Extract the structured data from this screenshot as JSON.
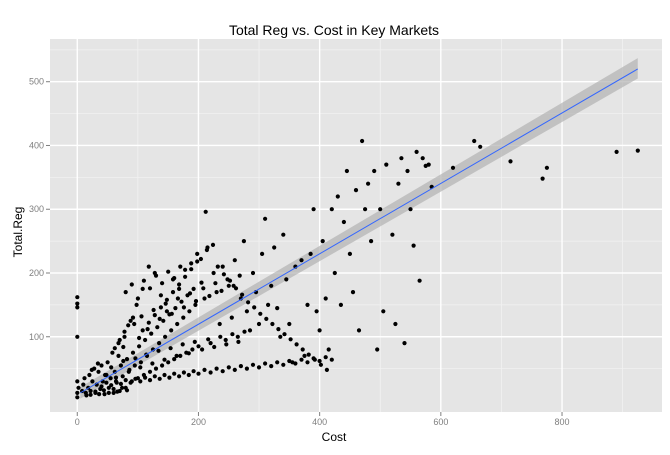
{
  "chart_data": {
    "type": "scatter",
    "title": "Total Reg vs. Cost in Key Markets",
    "xlabel": "Cost",
    "ylabel": "Total.Reg",
    "xlim": [
      -45,
      965
    ],
    "ylim": [
      -18,
      567
    ],
    "x_ticks": [
      0,
      200,
      400,
      600,
      800
    ],
    "y_ticks": [
      100,
      200,
      300,
      400,
      500
    ],
    "grid": true,
    "colors": {
      "panel": "#e5e5e5",
      "grid": "#ffffff",
      "point": "#000000",
      "fit_line": "#3366ff",
      "confidence_band": "#b2b2b2"
    },
    "fit_line": {
      "x": [
        5,
        925
      ],
      "y": [
        12,
        520
      ]
    },
    "confidence_band": {
      "x": [
        5,
        925
      ],
      "lower": [
        3,
        505
      ],
      "upper": [
        21,
        537
      ]
    },
    "points": [
      [
        0,
        162
      ],
      [
        0,
        152
      ],
      [
        0,
        146
      ],
      [
        0,
        100
      ],
      [
        0,
        30
      ],
      [
        0,
        12
      ],
      [
        0,
        5
      ],
      [
        2,
        20
      ],
      [
        8,
        15
      ],
      [
        10,
        25
      ],
      [
        12,
        35
      ],
      [
        15,
        8
      ],
      [
        18,
        20
      ],
      [
        20,
        40
      ],
      [
        22,
        15
      ],
      [
        25,
        30
      ],
      [
        28,
        50
      ],
      [
        30,
        12
      ],
      [
        32,
        25
      ],
      [
        35,
        45
      ],
      [
        38,
        18
      ],
      [
        40,
        55
      ],
      [
        42,
        30
      ],
      [
        45,
        10
      ],
      [
        48,
        40
      ],
      [
        50,
        60
      ],
      [
        52,
        20
      ],
      [
        55,
        35
      ],
      [
        58,
        75
      ],
      [
        60,
        12
      ],
      [
        62,
        45
      ],
      [
        65,
        28
      ],
      [
        68,
        90
      ],
      [
        70,
        15
      ],
      [
        72,
        55
      ],
      [
        75,
        38
      ],
      [
        78,
        100
      ],
      [
        80,
        20
      ],
      [
        82,
        65
      ],
      [
        85,
        45
      ],
      [
        88,
        125
      ],
      [
        90,
        30
      ],
      [
        92,
        75
      ],
      [
        95,
        55
      ],
      [
        98,
        150
      ],
      [
        100,
        35
      ],
      [
        102,
        85
      ],
      [
        105,
        60
      ],
      [
        108,
        175
      ],
      [
        110,
        40
      ],
      [
        112,
        95
      ],
      [
        115,
        70
      ],
      [
        118,
        210
      ],
      [
        120,
        45
      ],
      [
        122,
        105
      ],
      [
        125,
        80
      ],
      [
        128,
        200
      ],
      [
        130,
        50
      ],
      [
        132,
        115
      ],
      [
        135,
        90
      ],
      [
        138,
        165
      ],
      [
        140,
        55
      ],
      [
        142,
        125
      ],
      [
        145,
        100
      ],
      [
        148,
        140
      ],
      [
        150,
        60
      ],
      [
        152,
        135
      ],
      [
        155,
        110
      ],
      [
        158,
        190
      ],
      [
        160,
        65
      ],
      [
        162,
        145
      ],
      [
        165,
        120
      ],
      [
        168,
        175
      ],
      [
        170,
        70
      ],
      [
        172,
        155
      ],
      [
        175,
        130
      ],
      [
        178,
        205
      ],
      [
        180,
        75
      ],
      [
        182,
        165
      ],
      [
        185,
        140
      ],
      [
        188,
        215
      ],
      [
        190,
        80
      ],
      [
        192,
        175
      ],
      [
        195,
        150
      ],
      [
        198,
        230
      ],
      [
        200,
        85
      ],
      [
        205,
        185
      ],
      [
        210,
        160
      ],
      [
        212,
        296
      ],
      [
        215,
        240
      ],
      [
        220,
        90
      ],
      [
        225,
        200
      ],
      [
        230,
        170
      ],
      [
        235,
        120
      ],
      [
        240,
        210
      ],
      [
        245,
        95
      ],
      [
        250,
        180
      ],
      [
        255,
        130
      ],
      [
        260,
        220
      ],
      [
        265,
        100
      ],
      [
        270,
        160
      ],
      [
        275,
        250
      ],
      [
        280,
        140
      ],
      [
        285,
        110
      ],
      [
        290,
        200
      ],
      [
        295,
        170
      ],
      [
        300,
        120
      ],
      [
        305,
        230
      ],
      [
        310,
        285
      ],
      [
        315,
        150
      ],
      [
        320,
        180
      ],
      [
        325,
        240
      ],
      [
        330,
        145
      ],
      [
        335,
        100
      ],
      [
        340,
        260
      ],
      [
        345,
        190
      ],
      [
        350,
        120
      ],
      [
        355,
        60
      ],
      [
        360,
        210
      ],
      [
        370,
        220
      ],
      [
        375,
        70
      ],
      [
        380,
        150
      ],
      [
        385,
        230
      ],
      [
        390,
        300
      ],
      [
        395,
        140
      ],
      [
        400,
        110
      ],
      [
        405,
        250
      ],
      [
        410,
        160
      ],
      [
        415,
        80
      ],
      [
        420,
        300
      ],
      [
        425,
        200
      ],
      [
        430,
        320
      ],
      [
        435,
        150
      ],
      [
        440,
        280
      ],
      [
        445,
        360
      ],
      [
        450,
        230
      ],
      [
        455,
        170
      ],
      [
        460,
        330
      ],
      [
        465,
        110
      ],
      [
        470,
        407
      ],
      [
        475,
        300
      ],
      [
        480,
        340
      ],
      [
        485,
        250
      ],
      [
        490,
        360
      ],
      [
        495,
        80
      ],
      [
        500,
        300
      ],
      [
        505,
        140
      ],
      [
        510,
        370
      ],
      [
        520,
        260
      ],
      [
        525,
        120
      ],
      [
        530,
        340
      ],
      [
        535,
        380
      ],
      [
        540,
        90
      ],
      [
        545,
        360
      ],
      [
        550,
        300
      ],
      [
        555,
        243
      ],
      [
        560,
        390
      ],
      [
        565,
        188
      ],
      [
        570,
        380
      ],
      [
        575,
        368
      ],
      [
        580,
        370
      ],
      [
        585,
        335
      ],
      [
        620,
        365
      ],
      [
        655,
        407
      ],
      [
        665,
        398
      ],
      [
        715,
        375
      ],
      [
        768,
        348
      ],
      [
        775,
        365
      ],
      [
        890,
        390
      ],
      [
        925,
        392
      ],
      [
        14,
        12
      ],
      [
        22,
        9
      ],
      [
        30,
        14
      ],
      [
        36,
        10
      ],
      [
        44,
        16
      ],
      [
        52,
        12
      ],
      [
        60,
        18
      ],
      [
        66,
        14
      ],
      [
        74,
        20
      ],
      [
        82,
        16
      ],
      [
        24,
        48
      ],
      [
        34,
        58
      ],
      [
        46,
        40
      ],
      [
        56,
        52
      ],
      [
        64,
        36
      ],
      [
        76,
        62
      ],
      [
        86,
        48
      ],
      [
        96,
        66
      ],
      [
        104,
        52
      ],
      [
        114,
        72
      ],
      [
        124,
        58
      ],
      [
        134,
        78
      ],
      [
        144,
        64
      ],
      [
        154,
        82
      ],
      [
        164,
        70
      ],
      [
        174,
        88
      ],
      [
        184,
        74
      ],
      [
        194,
        92
      ],
      [
        206,
        80
      ],
      [
        216,
        96
      ],
      [
        226,
        84
      ],
      [
        236,
        100
      ],
      [
        246,
        88
      ],
      [
        256,
        104
      ],
      [
        266,
        92
      ],
      [
        276,
        108
      ],
      [
        94,
        120
      ],
      [
        106,
        132
      ],
      [
        116,
        112
      ],
      [
        126,
        142
      ],
      [
        136,
        128
      ],
      [
        146,
        152
      ],
      [
        156,
        136
      ],
      [
        166,
        160
      ],
      [
        176,
        146
      ],
      [
        186,
        168
      ],
      [
        196,
        156
      ],
      [
        208,
        176
      ],
      [
        218,
        164
      ],
      [
        228,
        184
      ],
      [
        238,
        172
      ],
      [
        248,
        190
      ],
      [
        258,
        180
      ],
      [
        268,
        196
      ],
      [
        80,
        170
      ],
      [
        90,
        182
      ],
      [
        100,
        160
      ],
      [
        110,
        188
      ],
      [
        120,
        176
      ],
      [
        130,
        196
      ],
      [
        140,
        184
      ],
      [
        150,
        202
      ],
      [
        160,
        192
      ],
      [
        170,
        210
      ],
      [
        62,
        82
      ],
      [
        70,
        95
      ],
      [
        78,
        108
      ],
      [
        84,
        118
      ],
      [
        92,
        130
      ],
      [
        68,
        70
      ],
      [
        76,
        84
      ],
      [
        102,
        98
      ],
      [
        108,
        110
      ],
      [
        118,
        122
      ],
      [
        128,
        134
      ],
      [
        138,
        146
      ],
      [
        148,
        158
      ],
      [
        158,
        170
      ],
      [
        168,
        182
      ],
      [
        178,
        194
      ],
      [
        188,
        206
      ],
      [
        198,
        218
      ],
      [
        204,
        222
      ],
      [
        214,
        236
      ],
      [
        224,
        244
      ],
      [
        232,
        210
      ],
      [
        242,
        198
      ],
      [
        252,
        188
      ],
      [
        262,
        176
      ],
      [
        272,
        166
      ],
      [
        282,
        154
      ],
      [
        292,
        146
      ],
      [
        302,
        136
      ],
      [
        312,
        128
      ],
      [
        322,
        120
      ],
      [
        332,
        112
      ],
      [
        342,
        104
      ],
      [
        352,
        96
      ],
      [
        362,
        88
      ],
      [
        372,
        80
      ],
      [
        382,
        72
      ],
      [
        392,
        64
      ],
      [
        402,
        56
      ],
      [
        412,
        48
      ],
      [
        40,
        22
      ],
      [
        48,
        28
      ],
      [
        56,
        24
      ],
      [
        64,
        30
      ],
      [
        72,
        26
      ],
      [
        80,
        32
      ],
      [
        88,
        28
      ],
      [
        96,
        34
      ],
      [
        104,
        30
      ],
      [
        112,
        36
      ],
      [
        120,
        32
      ],
      [
        128,
        38
      ],
      [
        136,
        34
      ],
      [
        144,
        40
      ],
      [
        152,
        36
      ],
      [
        160,
        42
      ],
      [
        168,
        38
      ],
      [
        176,
        44
      ],
      [
        184,
        40
      ],
      [
        192,
        46
      ],
      [
        200,
        42
      ],
      [
        210,
        48
      ],
      [
        220,
        44
      ],
      [
        230,
        50
      ],
      [
        240,
        46
      ],
      [
        250,
        52
      ],
      [
        260,
        48
      ],
      [
        270,
        54
      ],
      [
        280,
        50
      ],
      [
        290,
        56
      ],
      [
        300,
        52
      ],
      [
        310,
        58
      ],
      [
        320,
        54
      ],
      [
        330,
        60
      ],
      [
        340,
        56
      ],
      [
        350,
        62
      ],
      [
        360,
        58
      ],
      [
        370,
        64
      ],
      [
        380,
        60
      ],
      [
        390,
        66
      ],
      [
        400,
        62
      ],
      [
        410,
        68
      ],
      [
        420,
        64
      ]
    ]
  }
}
